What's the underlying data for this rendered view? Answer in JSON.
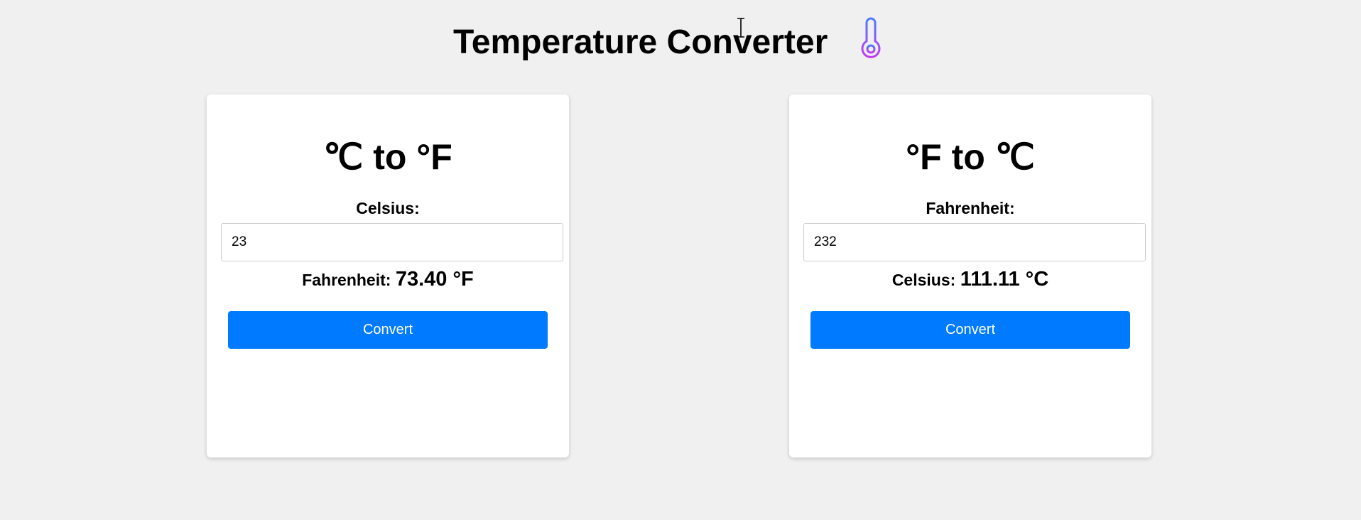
{
  "page": {
    "title": "Temperature Converter",
    "title_icon": "thermometer-icon",
    "accent_color": "#007bff"
  },
  "cards": [
    {
      "title_from": "℃",
      "title_mid": " to ",
      "title_to": "°F",
      "input_label": "Celsius:",
      "input_value": "23",
      "result_label": "Fahrenheit: ",
      "result_value": "73.40 °F",
      "button_label": "Convert"
    },
    {
      "title_from": "°F",
      "title_mid": " to ",
      "title_to": "℃",
      "input_label": "Fahrenheit:",
      "input_value": "232",
      "result_label": "Celsius: ",
      "result_value": "111.11 °C",
      "button_label": "Convert"
    }
  ]
}
